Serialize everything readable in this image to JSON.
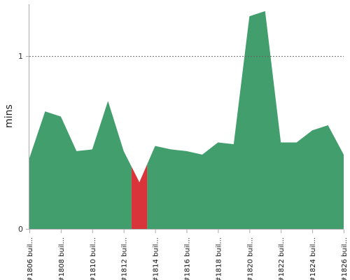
{
  "chart_data": {
    "type": "area",
    "ylabel": "mins",
    "ylim": [
      0,
      1.3
    ],
    "y_ticks": [
      0,
      1
    ],
    "y_tick_labels": [
      "0",
      "1"
    ],
    "reference_line": {
      "value": 1,
      "style": "dotted"
    },
    "x_tick_labels": [
      "#1806 buil...",
      "#1808 buil...",
      "#1810 buil...",
      "#1812 buil...",
      "#1814 buil...",
      "#1816 buil...",
      "#1818 buil...",
      "#1820 buil...",
      "#1822 buil...",
      "#1824 buil...",
      "#1826 buil..."
    ],
    "x_tick_indices": [
      0,
      2,
      4,
      6,
      8,
      10,
      12,
      14,
      16,
      18,
      20
    ],
    "values": [
      0.41,
      0.68,
      0.65,
      0.45,
      0.46,
      0.74,
      0.45,
      0.27,
      0.48,
      0.46,
      0.45,
      0.43,
      0.5,
      0.49,
      1.23,
      1.26,
      0.5,
      0.5,
      0.57,
      0.6,
      0.43
    ],
    "segments": [
      {
        "status": "success",
        "start": 0,
        "end": 6.5,
        "color": "#429e6c"
      },
      {
        "status": "failure",
        "start": 6.5,
        "end": 7.5,
        "color": "#d93439"
      },
      {
        "status": "success",
        "start": 7.5,
        "end": 20,
        "color": "#429e6c"
      }
    ],
    "axis_color": "#aaaaaa",
    "grid": false
  }
}
